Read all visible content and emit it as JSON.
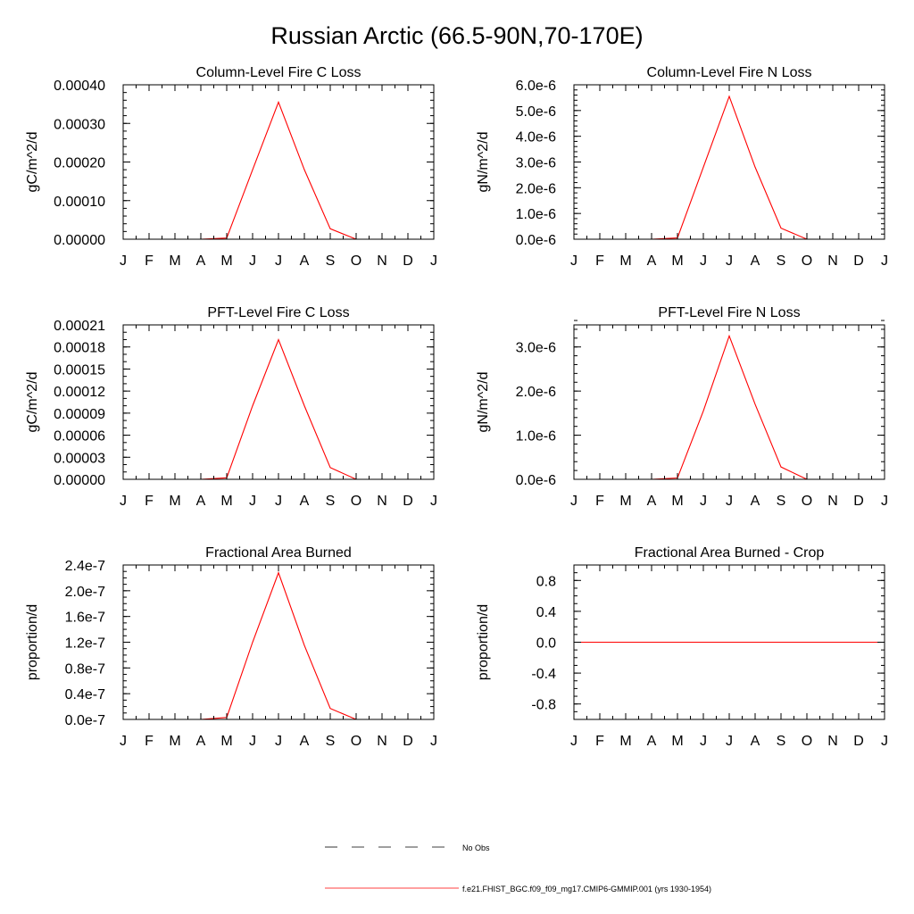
{
  "title": "Russian Arctic (66.5-90N,70-170E)",
  "months": [
    "J",
    "F",
    "M",
    "A",
    "M",
    "J",
    "J",
    "A",
    "S",
    "O",
    "N",
    "D",
    "J"
  ],
  "legend": [
    {
      "label": "No Obs",
      "style": "dashed",
      "color": "#000000"
    },
    {
      "label": "f.e21.FHIST_BGC.f09_f09_mg17.CMIP6-GMMIP.001 (yrs 1930-1954)",
      "style": "solid",
      "color": "#ff0000"
    }
  ],
  "chart_data": [
    {
      "type": "line",
      "title": "Column-Level Fire C Loss",
      "ylabel": "gC/m^2/d",
      "ylim": [
        0,
        0.0004
      ],
      "yticks": [
        0,
        0.0001,
        0.0002,
        0.0003,
        0.0004
      ],
      "ytick_labels": [
        "0.00000",
        "0.00010",
        "0.00020",
        "0.00030",
        "0.00040"
      ],
      "yminor": 2e-05,
      "x": [
        0,
        1,
        2,
        3,
        4,
        5,
        6,
        7,
        8,
        9,
        10,
        11,
        12
      ],
      "series": [
        {
          "name": "f.e21.FHIST_BGC.f09_f09_mg17.CMIP6-GMMIP.001 (yrs 1930-1954)",
          "color": "#ff0000",
          "values": [
            0,
            0,
            0,
            0,
            3e-06,
            0.00018,
            0.000355,
            0.00018,
            2.7e-05,
            0,
            0,
            0,
            0
          ]
        }
      ]
    },
    {
      "type": "line",
      "title": "Column-Level Fire N Loss",
      "ylabel": "gN/m^2/d",
      "ylim": [
        0,
        6e-06
      ],
      "yticks": [
        0,
        1e-06,
        2e-06,
        3e-06,
        4e-06,
        5e-06,
        6e-06
      ],
      "ytick_labels": [
        "0.0e-6",
        "1.0e-6",
        "2.0e-6",
        "3.0e-6",
        "4.0e-6",
        "5.0e-6",
        "6.0e-6"
      ],
      "yminor": 2e-07,
      "x": [
        0,
        1,
        2,
        3,
        4,
        5,
        6,
        7,
        8,
        9,
        10,
        11,
        12
      ],
      "series": [
        {
          "name": "f.e21.FHIST_BGC.f09_f09_mg17.CMIP6-GMMIP.001 (yrs 1930-1954)",
          "color": "#ff0000",
          "values": [
            0,
            0,
            0,
            0,
            5e-08,
            2.8e-06,
            5.55e-06,
            2.8e-06,
            4.3e-07,
            0,
            0,
            0,
            0
          ]
        }
      ]
    },
    {
      "type": "line",
      "title": "PFT-Level Fire C Loss",
      "ylabel": "gC/m^2/d",
      "ylim": [
        0,
        0.00021
      ],
      "yticks": [
        0,
        3e-05,
        6e-05,
        9e-05,
        0.00012,
        0.00015,
        0.00018,
        0.00021
      ],
      "ytick_labels": [
        "0.00000",
        "0.00003",
        "0.00006",
        "0.00009",
        "0.00012",
        "0.00015",
        "0.00018",
        "0.00021"
      ],
      "yminor": 1e-05,
      "x": [
        0,
        1,
        2,
        3,
        4,
        5,
        6,
        7,
        8,
        9,
        10,
        11,
        12
      ],
      "series": [
        {
          "name": "f.e21.FHIST_BGC.f09_f09_mg17.CMIP6-GMMIP.001 (yrs 1930-1954)",
          "color": "#ff0000",
          "values": [
            0,
            0,
            0,
            0,
            2e-06,
            0.0001,
            0.00019,
            0.0001,
            1.6e-05,
            0,
            0,
            0,
            0
          ]
        }
      ]
    },
    {
      "type": "line",
      "title": "PFT-Level Fire N Loss",
      "ylabel": "gN/m^2/d",
      "ylim": [
        0,
        3.5e-06
      ],
      "yticks": [
        0,
        1e-06,
        2e-06,
        3e-06
      ],
      "ytick_labels": [
        "0.0e-6",
        "1.0e-6",
        "2.0e-6",
        "3.0e-6"
      ],
      "yminor": 2e-07,
      "x": [
        0,
        1,
        2,
        3,
        4,
        5,
        6,
        7,
        8,
        9,
        10,
        11,
        12
      ],
      "series": [
        {
          "name": "f.e21.FHIST_BGC.f09_f09_mg17.CMIP6-GMMIP.001 (yrs 1930-1954)",
          "color": "#ff0000",
          "values": [
            0,
            0,
            0,
            0,
            3e-08,
            1.55e-06,
            3.25e-06,
            1.7e-06,
            2.8e-07,
            0,
            0,
            0,
            0
          ]
        }
      ]
    },
    {
      "type": "line",
      "title": "Fractional Area Burned",
      "ylabel": "proportion/d",
      "ylim": [
        0,
        2.4e-07
      ],
      "yticks": [
        0,
        4e-08,
        8e-08,
        1.2e-07,
        1.6e-07,
        2e-07,
        2.4e-07
      ],
      "ytick_labels": [
        "0.0e-7",
        "0.4e-7",
        "0.8e-7",
        "1.2e-7",
        "1.6e-7",
        "2.0e-7",
        "2.4e-7"
      ],
      "yminor": 1e-08,
      "x": [
        0,
        1,
        2,
        3,
        4,
        5,
        6,
        7,
        8,
        9,
        10,
        11,
        12
      ],
      "series": [
        {
          "name": "f.e21.FHIST_BGC.f09_f09_mg17.CMIP6-GMMIP.001 (yrs 1930-1954)",
          "color": "#ff0000",
          "values": [
            0,
            0,
            0,
            0,
            3e-09,
            1.2e-07,
            2.28e-07,
            1.15e-07,
            1.7e-08,
            0,
            0,
            0,
            0
          ]
        }
      ]
    },
    {
      "type": "line",
      "title": "Fractional Area Burned - Crop",
      "ylabel": "proportion/d",
      "ylim": [
        -1.0,
        1.0
      ],
      "yticks": [
        -0.8,
        -0.4,
        0.0,
        0.4,
        0.8
      ],
      "ytick_labels": [
        "-0.8",
        "-0.4",
        "0.0",
        "0.4",
        "0.8"
      ],
      "yminor": 0.1,
      "x": [
        0,
        1,
        2,
        3,
        4,
        5,
        6,
        7,
        8,
        9,
        10,
        11,
        12
      ],
      "series": [
        {
          "name": "f.e21.FHIST_BGC.f09_f09_mg17.CMIP6-GMMIP.001 (yrs 1930-1954)",
          "color": "#ff0000",
          "values": [
            0,
            0,
            0,
            0,
            0,
            0,
            0,
            0,
            0,
            0,
            0,
            0,
            0
          ]
        }
      ]
    }
  ]
}
